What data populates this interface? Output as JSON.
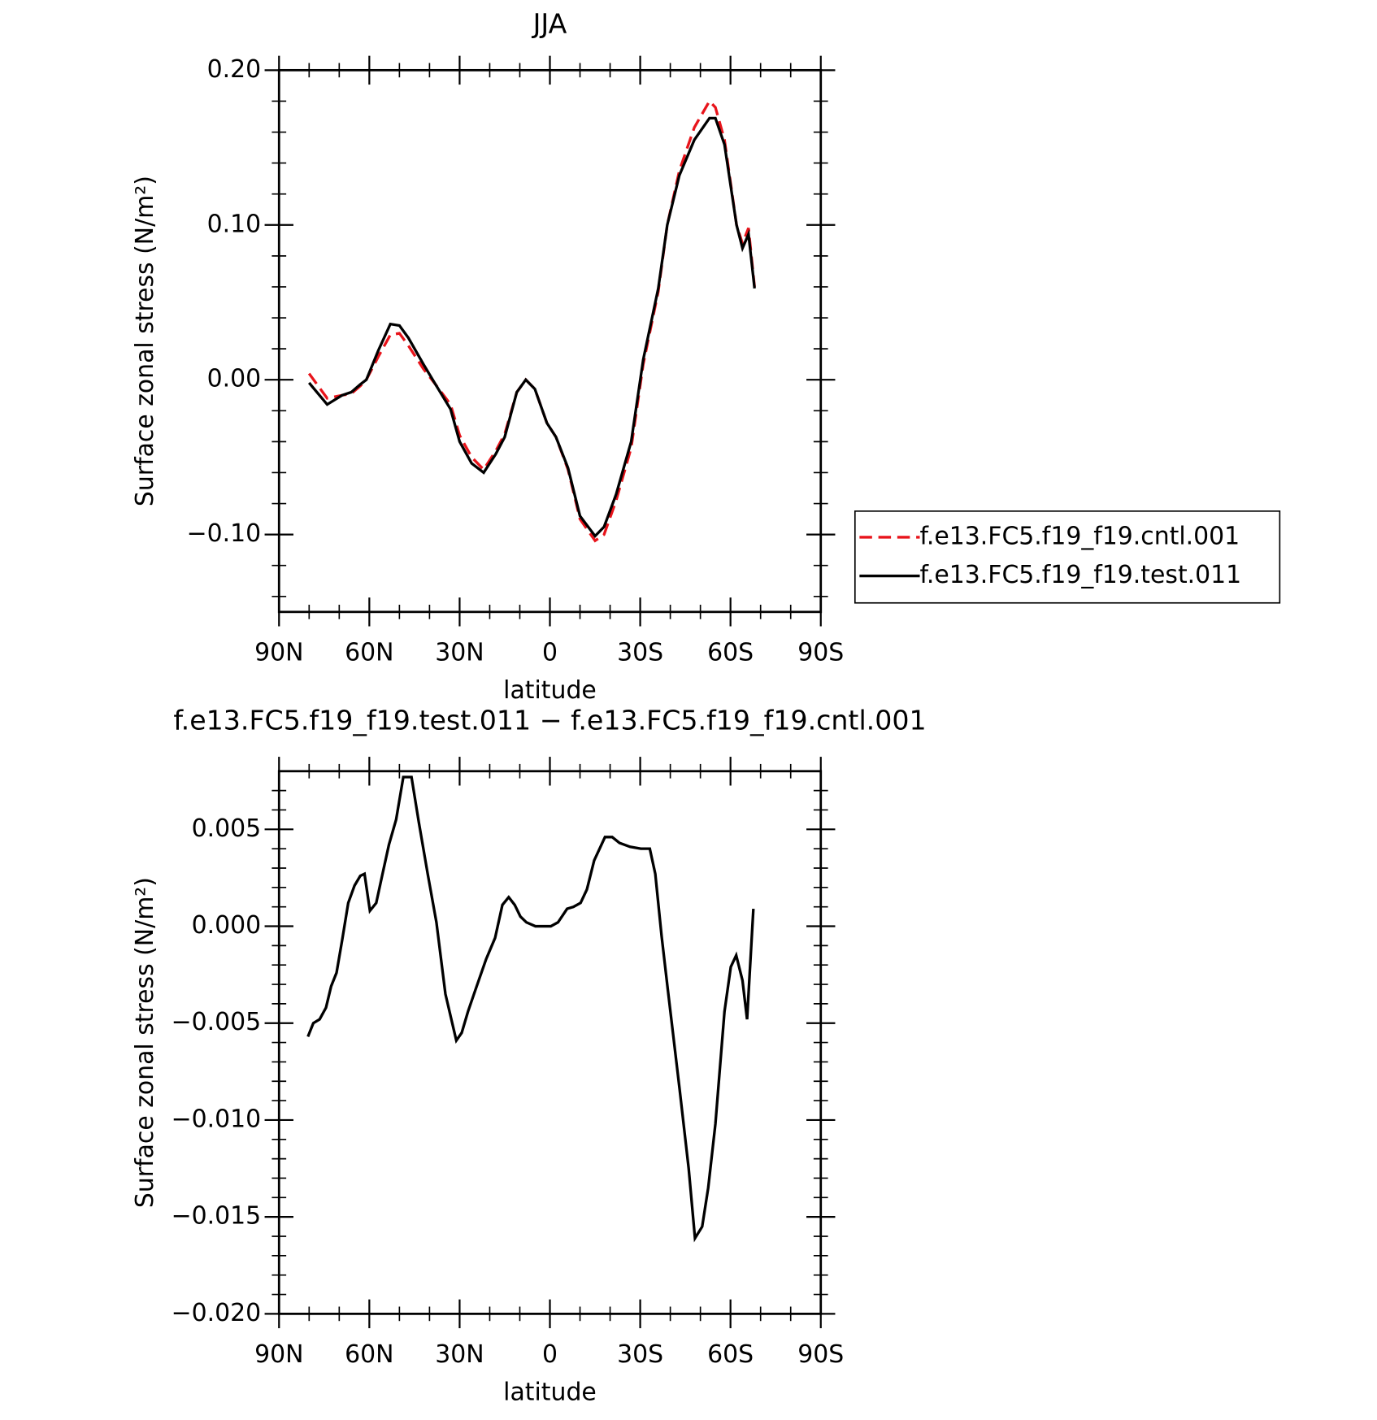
{
  "chart_data": [
    {
      "type": "line",
      "title": "JJA",
      "ylabel": "Surface zonal stress (N/m²)",
      "xlabel": "latitude",
      "x": [
        80,
        74,
        69,
        66,
        63,
        61,
        57,
        53,
        50,
        47,
        42,
        38,
        33,
        30,
        26,
        22,
        18,
        15,
        11,
        8,
        5,
        1,
        -2,
        -6,
        -10,
        -15,
        -18,
        -22,
        -27,
        -31,
        -36,
        -39,
        -43,
        -48,
        -53,
        -55,
        -58,
        -62,
        -64,
        -66,
        -68
      ],
      "series": [
        {
          "name": "f.e13.FC5.f19_f19.cntl.001",
          "color": "#e8141b",
          "style": "dashed",
          "values": [
            0.004,
            -0.012,
            -0.01,
            -0.009,
            -0.004,
            0.0,
            0.015,
            0.029,
            0.03,
            0.022,
            0.007,
            -0.003,
            -0.016,
            -0.036,
            -0.05,
            -0.058,
            -0.046,
            -0.035,
            -0.008,
            0.0,
            -0.006,
            -0.028,
            -0.037,
            -0.058,
            -0.09,
            -0.104,
            -0.1,
            -0.078,
            -0.044,
            0.01,
            0.057,
            0.1,
            0.135,
            0.163,
            0.18,
            0.176,
            0.155,
            0.1,
            0.088,
            0.098,
            0.06
          ]
        },
        {
          "name": "f.e13.FC5.f19_f19.test.011",
          "color": "#000000",
          "style": "solid",
          "values": [
            -0.002,
            -0.016,
            -0.01,
            -0.008,
            -0.003,
            0.0,
            0.019,
            0.036,
            0.035,
            0.027,
            0.01,
            -0.003,
            -0.019,
            -0.04,
            -0.054,
            -0.06,
            -0.048,
            -0.037,
            -0.008,
            0.0,
            -0.006,
            -0.028,
            -0.037,
            -0.057,
            -0.088,
            -0.101,
            -0.095,
            -0.074,
            -0.04,
            0.013,
            0.059,
            0.1,
            0.132,
            0.155,
            0.169,
            0.169,
            0.152,
            0.1,
            0.085,
            0.094,
            0.059
          ]
        }
      ],
      "xlim": [
        90,
        -90
      ],
      "xticks": [
        {
          "value": 90,
          "label": "90N"
        },
        {
          "value": 60,
          "label": "60N"
        },
        {
          "value": 30,
          "label": "30N"
        },
        0,
        {
          "value": -30,
          "label": "30S"
        },
        {
          "value": -60,
          "label": "60S"
        },
        {
          "value": -90,
          "label": "90S"
        }
      ],
      "xminorticks": [
        80,
        70,
        50,
        40,
        20,
        10,
        -10,
        -20,
        -40,
        -50,
        -70,
        -80
      ],
      "ylim": [
        -0.15,
        0.2
      ],
      "yticks": [
        {
          "value": 0.2,
          "label": "0.20"
        },
        {
          "value": 0.1,
          "label": "0.10"
        },
        {
          "value": 0,
          "label": "0.00"
        },
        {
          "value": -0.1,
          "label": "−0.10"
        }
      ],
      "yminorticks": [
        -0.14,
        -0.12,
        -0.08,
        -0.06,
        -0.04,
        -0.02,
        0.02,
        0.04,
        0.06,
        0.08,
        0.12,
        0.14,
        0.16,
        0.18
      ],
      "legend": "right"
    },
    {
      "type": "line",
      "title": "f.e13.FC5.f19_f19.test.011 − f.e13.FC5.f19_f19.cntl.001",
      "ylabel": "Surface zonal stress (N/m²)",
      "xlabel": "latitude",
      "x": [
        80.4,
        78.6,
        76.5,
        74.4,
        72.7,
        70.9,
        69,
        67,
        64.9,
        63,
        61.6,
        59.8,
        57.7,
        55.6,
        53.5,
        51.1,
        48.7,
        46,
        43.6,
        40.6,
        37.7,
        34.7,
        31.1,
        29.3,
        27.2,
        24.8,
        21.2,
        18.2,
        15.8,
        13.7,
        11.7,
        9.8,
        7.8,
        4.8,
        1.8,
        -0.3,
        -2.7,
        -5.7,
        -7.8,
        -10.2,
        -12.3,
        -14.7,
        -16.8,
        -18.3,
        -20.7,
        -23.1,
        -26.6,
        -30.2,
        -33.2,
        -35,
        -37.1,
        -39.2,
        -43.1,
        -46.1,
        -48.2,
        -50.6,
        -52.6,
        -55,
        -58,
        -60.1,
        -61.9,
        -64,
        -65.5,
        -67.6
      ],
      "series": [
        {
          "color": "#000000",
          "style": "solid",
          "values": [
            -0.0057,
            -0.005,
            -0.0048,
            -0.0042,
            -0.0031,
            -0.0024,
            -0.0007,
            0.0012,
            0.0021,
            0.0026,
            0.0027,
            0.0008,
            0.0012,
            0.0027,
            0.0042,
            0.0055,
            0.0077,
            0.0077,
            0.0054,
            0.0027,
            0.0002,
            -0.0035,
            -0.0059,
            -0.0055,
            -0.0044,
            -0.0033,
            -0.0017,
            -0.0006,
            0.0011,
            0.0015,
            0.0011,
            0.0005,
            0.0002,
            0.0,
            0.0,
            0.0,
            0.0002,
            0.0009,
            0.001,
            0.0012,
            0.0019,
            0.0034,
            0.0041,
            0.0046,
            0.0046,
            0.0043,
            0.0041,
            0.004,
            0.004,
            0.0027,
            -0.0005,
            -0.0033,
            -0.0084,
            -0.0125,
            -0.0161,
            -0.0155,
            -0.0135,
            -0.0102,
            -0.0044,
            -0.0021,
            -0.0015,
            -0.0028,
            -0.0048,
            0.0009
          ]
        }
      ],
      "xlim": [
        90,
        -90
      ],
      "xticks": [
        {
          "value": 90,
          "label": "90N"
        },
        {
          "value": 60,
          "label": "60N"
        },
        {
          "value": 30,
          "label": "30N"
        },
        0,
        {
          "value": -30,
          "label": "30S"
        },
        {
          "value": -60,
          "label": "60S"
        },
        {
          "value": -90,
          "label": "90S"
        }
      ],
      "xminorticks": [
        80,
        70,
        50,
        40,
        20,
        10,
        -10,
        -20,
        -40,
        -50,
        -70,
        -80
      ],
      "ylim": [
        -0.02,
        0.008
      ],
      "yticks": [
        {
          "value": 0.005,
          "label": "0.005"
        },
        {
          "value": 0,
          "label": "0.000"
        },
        {
          "value": -0.005,
          "label": "−0.005"
        },
        {
          "value": -0.01,
          "label": "−0.010"
        },
        {
          "value": -0.015,
          "label": "−0.015"
        },
        {
          "value": -0.02,
          "label": "−0.020"
        }
      ],
      "yminorticks": [
        -0.019,
        -0.018,
        -0.017,
        -0.016,
        -0.014,
        -0.013,
        -0.012,
        -0.011,
        -0.009,
        -0.008,
        -0.007,
        -0.006,
        -0.004,
        -0.003,
        -0.002,
        -0.001,
        0.001,
        0.002,
        0.003,
        0.004,
        0.006,
        0.007
      ]
    }
  ]
}
